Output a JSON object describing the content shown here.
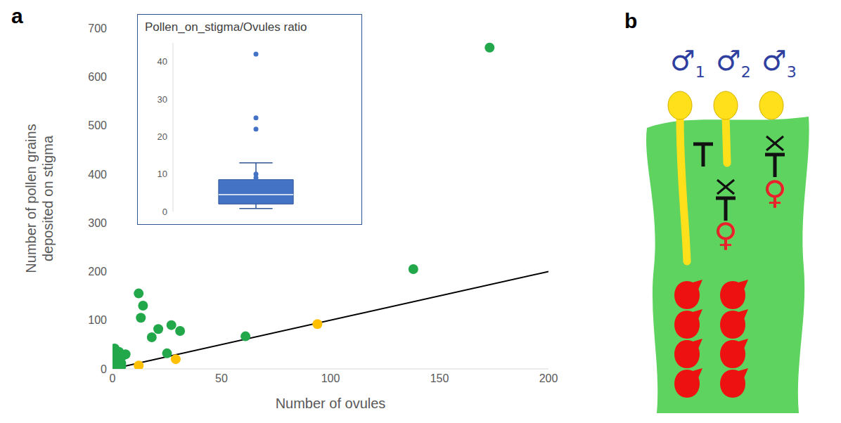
{
  "chart_data": [
    {
      "type": "scatter",
      "panel": "a",
      "x_label": "Number of ovules",
      "y_label": "Number of pollen grains deposited on stigma",
      "xlim": [
        0,
        200
      ],
      "xticks": [
        0,
        50,
        100,
        150,
        200
      ],
      "ylim": [
        0,
        700
      ],
      "yticks": [
        0,
        100,
        200,
        300,
        400,
        500,
        600,
        700
      ],
      "grid": false,
      "series": [
        {
          "type": "line",
          "color": "#000000",
          "line_style": "solid",
          "x": [
            0,
            200
          ],
          "y": [
            0,
            200
          ]
        },
        {
          "color": "#22a84a",
          "marker": "circle",
          "x": [
            1,
            1,
            1,
            2,
            2,
            3,
            3,
            5,
            6,
            4,
            4,
            1,
            3,
            12,
            14,
            13,
            18,
            21,
            25,
            27,
            31,
            61,
            138,
            173
          ],
          "y": [
            42,
            25,
            15,
            5,
            30,
            35,
            20,
            28,
            30,
            5,
            12,
            5,
            3,
            155,
            130,
            105,
            65,
            82,
            32,
            90,
            78,
            67,
            205,
            660
          ]
        },
        {
          "color": "#ffc000",
          "marker": "circle",
          "x": [
            12,
            29,
            94
          ],
          "y": [
            7,
            20,
            92
          ]
        }
      ]
    },
    {
      "type": "box",
      "title": "Pollen_on_stigma/Ovules ratio",
      "ylim": [
        0,
        45
      ],
      "yticks": [
        0,
        10,
        20,
        30,
        40
      ],
      "color": "#4472c4",
      "whisker_low": 0.8,
      "q1": 2,
      "median": 4.5,
      "q3": 8.5,
      "whisker_high": 13,
      "outliers": [
        42,
        25,
        22
      ],
      "points": [
        10,
        9
      ]
    }
  ],
  "diagram": {
    "panel": "b",
    "males": [
      {
        "symbol": "♂",
        "index": "1"
      },
      {
        "symbol": "♂",
        "index": "2"
      },
      {
        "symbol": "♂",
        "index": "3"
      }
    ],
    "females": [
      "♀",
      "♀"
    ]
  }
}
